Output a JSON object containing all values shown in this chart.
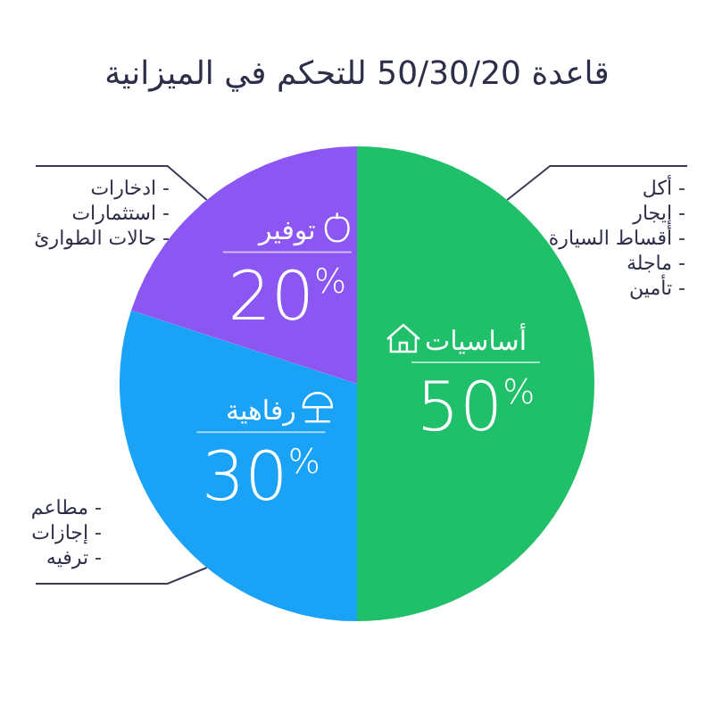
{
  "chart_data": {
    "type": "pie",
    "title": "قاعدة 50/30/20 للتحكم في الميزانية",
    "categories": [
      "أساسيات",
      "رفاهية",
      "توفير"
    ],
    "values": [
      50,
      30,
      20
    ],
    "colors": [
      "#20c06b",
      "#19a2f6",
      "#8b56f1"
    ],
    "value_labels": [
      "50%",
      "30%",
      "20%"
    ],
    "annotations": [
      "- أكل\n- إيجار\n- أقساط السيارة\n- ماجلة\n- تأمين",
      "- مطاعم\n- إجازات\n- ترفيه",
      "- ادخارات\n- استثمارات\n- حالات الطوارئ"
    ]
  }
}
